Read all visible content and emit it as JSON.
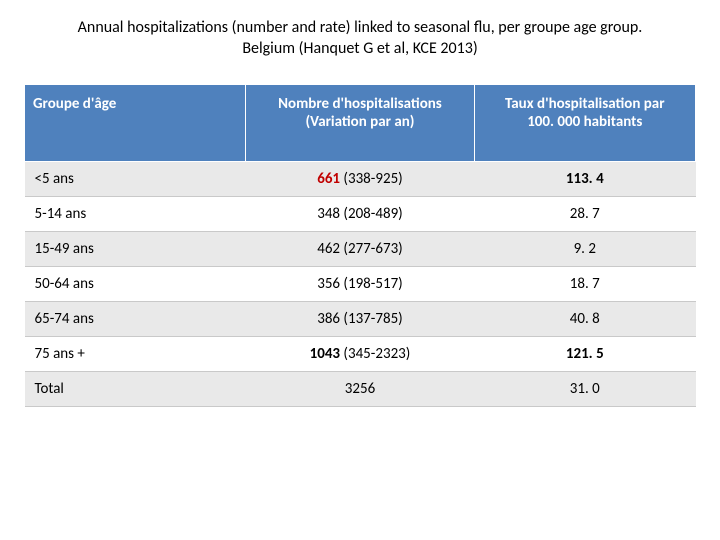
{
  "title_line1": "Annual hospitalizations (number and rate) linked to seasonal flu, per groupe age group.",
  "title_line2": "Belgium (Hanquet G et al, KCE 2013)",
  "headers": {
    "col1": "Groupe d'âge",
    "col2_l1": "Nombre d'hospitalisations",
    "col2_l2": "(Variation par an)",
    "col3_l1": "Taux d'hospitalisation par",
    "col3_l2": "100. 000 habitants"
  },
  "rows": [
    {
      "age": "<5 ans",
      "num": "661",
      "range": " (338-925)",
      "rate": "113. 4",
      "highlight": true,
      "bold_rate": true
    },
    {
      "age": "5-14 ans",
      "num": "348",
      "range": " (208-489)",
      "rate": "28. 7",
      "highlight": false,
      "bold_rate": false
    },
    {
      "age": "15-49 ans",
      "num": "462",
      "range": " (277-673)",
      "rate": "9. 2",
      "highlight": false,
      "bold_rate": false
    },
    {
      "age": "50-64 ans",
      "num": "356",
      "range": " (198-517)",
      "rate": "18. 7",
      "highlight": false,
      "bold_rate": false
    },
    {
      "age": "65-74 ans",
      "num": "386",
      "range": " (137-785)",
      "rate": "40. 8",
      "highlight": false,
      "bold_rate": false
    },
    {
      "age": "75 ans +",
      "num": "1043",
      "range": " (345-2323)",
      "rate": "121. 5",
      "highlight": false,
      "bold_rate": true,
      "bold_num": true
    },
    {
      "age": "Total",
      "num": "3256",
      "range": "",
      "rate": "31. 0",
      "highlight": false,
      "bold_rate": false
    }
  ],
  "colors": {
    "header_bg": "#4f81bd",
    "header_text": "#ffffff",
    "row_alt_bg": "#e9e9e9",
    "row_bg": "#ffffff",
    "border": "#c9c9c9",
    "highlight_num": "#c00000",
    "text": "#000000"
  },
  "table_style": {
    "type": "table",
    "font_family": "Calibri",
    "title_fontsize": 16,
    "header_fontsize": 15,
    "cell_fontsize": 15,
    "col_widths_pct": [
      33,
      34,
      33
    ]
  }
}
